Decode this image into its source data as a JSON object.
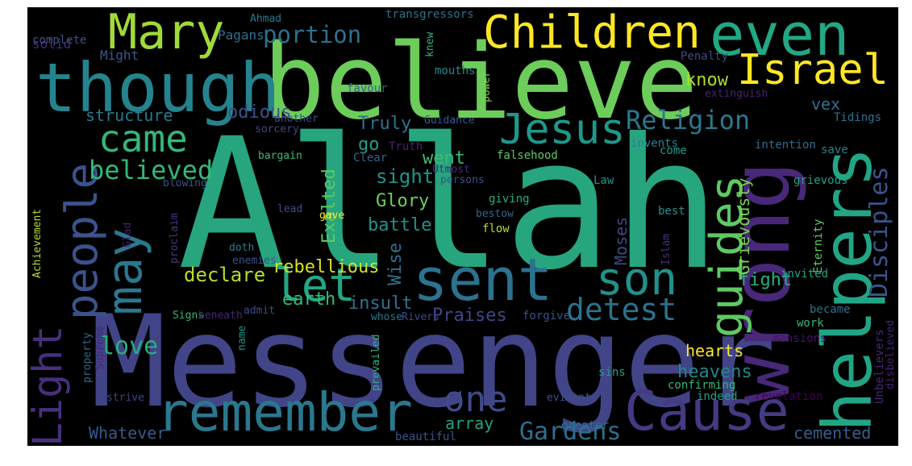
{
  "words": [
    {
      "text": "Allah",
      "color": "#26a57f"
    },
    {
      "text": "Messenger",
      "color": "#414487"
    },
    {
      "text": "believe",
      "color": "#6ccd5a"
    },
    {
      "text": "wrong",
      "color": "#482878"
    },
    {
      "text": "helpers",
      "color": "#21a585"
    },
    {
      "text": "though",
      "color": "#25838e"
    },
    {
      "text": "Children",
      "color": "#fde725"
    },
    {
      "text": "even",
      "color": "#22a884"
    },
    {
      "text": "Mary",
      "color": "#a0da39"
    },
    {
      "text": "Israel",
      "color": "#fde725"
    },
    {
      "text": "remember",
      "color": "#2a788e"
    },
    {
      "text": "Cause",
      "color": "#443a83"
    },
    {
      "text": "sent",
      "color": "#2c728e"
    },
    {
      "text": "Jesus",
      "color": "#1f988b"
    },
    {
      "text": "guides",
      "color": "#5ec962"
    },
    {
      "text": "may",
      "color": "#2a788e"
    },
    {
      "text": "people",
      "color": "#3b528b"
    },
    {
      "text": "Light",
      "color": "#472f7d"
    },
    {
      "text": "son",
      "color": "#21918c"
    },
    {
      "text": "let",
      "color": "#22a884"
    },
    {
      "text": "came",
      "color": "#35b779"
    },
    {
      "text": "one",
      "color": "#3e4a89"
    },
    {
      "text": "detest",
      "color": "#2c728e"
    },
    {
      "text": "Religion",
      "color": "#2a788e"
    },
    {
      "text": "portion",
      "color": "#2d708e"
    },
    {
      "text": "believed",
      "color": "#35b779"
    },
    {
      "text": "Disciples",
      "color": "#3b528b"
    },
    {
      "text": "Gardens",
      "color": "#2d708e"
    },
    {
      "text": "love",
      "color": "#28ae80"
    },
    {
      "text": "declare",
      "color": "#b5de2b"
    },
    {
      "text": "rebellious",
      "color": "#d8e219"
    },
    {
      "text": "structure",
      "color": "#2a788e"
    },
    {
      "text": "odious",
      "color": "#3b528b"
    },
    {
      "text": "Truly",
      "color": "#2c728e"
    },
    {
      "text": "went",
      "color": "#3dbc74"
    },
    {
      "text": "know",
      "color": "#addc30"
    },
    {
      "text": "sight",
      "color": "#1f968b"
    },
    {
      "text": "Glory",
      "color": "#6ece58"
    },
    {
      "text": "battle",
      "color": "#21918c"
    },
    {
      "text": "Exalted",
      "color": "#5ec962"
    },
    {
      "text": "Moses",
      "color": "#404688"
    },
    {
      "text": "fight",
      "color": "#27ad81"
    },
    {
      "text": "Grievously",
      "color": "#7ad151"
    },
    {
      "text": "insult",
      "color": "#2d708e"
    },
    {
      "text": "Praises",
      "color": "#404688"
    },
    {
      "text": "earth",
      "color": "#38b977"
    },
    {
      "text": "Wise",
      "color": "#2e6e8e"
    },
    {
      "text": "hearts",
      "color": "#fde725"
    },
    {
      "text": "heavens",
      "color": "#25848e"
    },
    {
      "text": "array",
      "color": "#20a386"
    },
    {
      "text": "Whatever",
      "color": "#38598c"
    },
    {
      "text": "cemented",
      "color": "#355f8d"
    },
    {
      "text": "vex",
      "color": "#2c728e"
    },
    {
      "text": "go",
      "color": "#1fa088"
    },
    {
      "text": "solid",
      "color": "#472c7a"
    },
    {
      "text": "complete",
      "color": "#3b528b"
    },
    {
      "text": "Might",
      "color": "#38598c"
    },
    {
      "text": "Pagans",
      "color": "#2d708e"
    },
    {
      "text": "Ahmad",
      "color": "#29798e"
    },
    {
      "text": "transgressors",
      "color": "#2d708e"
    },
    {
      "text": "knew",
      "color": "#2fb47c"
    },
    {
      "text": "Penalty",
      "color": "#3e4a89"
    },
    {
      "text": "extinguish",
      "color": "#482475"
    },
    {
      "text": "mouths",
      "color": "#23898e"
    },
    {
      "text": "power",
      "color": "#7ad151"
    },
    {
      "text": "favour",
      "color": "#33638d"
    },
    {
      "text": "another",
      "color": "#3e4989"
    },
    {
      "text": "Guidance",
      "color": "#365d8d"
    },
    {
      "text": "sorcery",
      "color": "#3f4788"
    },
    {
      "text": "Tidings",
      "color": "#2c728e"
    },
    {
      "text": "Truth",
      "color": "#482173"
    },
    {
      "text": "invents",
      "color": "#26828e"
    },
    {
      "text": "intention",
      "color": "#2f6c8e"
    },
    {
      "text": "come",
      "color": "#1f9a8a"
    },
    {
      "text": "save",
      "color": "#25848e"
    },
    {
      "text": "bargain",
      "color": "#3aba76"
    },
    {
      "text": "Clear",
      "color": "#33638d"
    },
    {
      "text": "falsehood",
      "color": "#5ec962"
    },
    {
      "text": "Utmost",
      "color": "#482878"
    },
    {
      "text": "persons",
      "color": "#3b528b"
    },
    {
      "text": "Law",
      "color": "#20938c"
    },
    {
      "text": "grievous",
      "color": "#20a386"
    },
    {
      "text": "Achievement",
      "color": "#b5de2b"
    },
    {
      "text": "blowing",
      "color": "#3b528b"
    },
    {
      "text": "lead",
      "color": "#3e4a89"
    },
    {
      "text": "giving",
      "color": "#26ad81"
    },
    {
      "text": "best",
      "color": "#21918c"
    },
    {
      "text": "proclaim",
      "color": "#443983"
    },
    {
      "text": "gave",
      "color": "#fde725"
    },
    {
      "text": "bestow",
      "color": "#31668e"
    },
    {
      "text": "Glad",
      "color": "#481f70"
    },
    {
      "text": "flow",
      "color": "#b5de2b"
    },
    {
      "text": "Islam",
      "color": "#46327e"
    },
    {
      "text": "Eternity",
      "color": "#5ec962"
    },
    {
      "text": "doth",
      "color": "#2a788e"
    },
    {
      "text": "enemies",
      "color": "#3b528b"
    },
    {
      "text": "invited",
      "color": "#20a386"
    },
    {
      "text": "admit",
      "color": "#3f4889"
    },
    {
      "text": "Signs",
      "color": "#31b57b"
    },
    {
      "text": "beneath",
      "color": "#482576"
    },
    {
      "text": "forgive",
      "color": "#3b528b"
    },
    {
      "text": "whose",
      "color": "#2a768e"
    },
    {
      "text": "Rivers",
      "color": "#3e4989"
    },
    {
      "text": "mansions",
      "color": "#471365"
    },
    {
      "text": "became",
      "color": "#2c728e"
    },
    {
      "text": "Unbelievers",
      "color": "#482878"
    },
    {
      "text": "disbelieved",
      "color": "#482475"
    },
    {
      "text": "work",
      "color": "#37b878"
    },
    {
      "text": "property",
      "color": "#31678e"
    },
    {
      "text": "Supreme",
      "color": "#482677"
    },
    {
      "text": "name",
      "color": "#1f968b"
    },
    {
      "text": "prevailed",
      "color": "#2db27d"
    },
    {
      "text": "sins",
      "color": "#1f9e89"
    },
    {
      "text": "strive",
      "color": "#414487"
    },
    {
      "text": "evident",
      "color": "#3b528b"
    },
    {
      "text": "confirming",
      "color": "#35b779"
    },
    {
      "text": "indeed",
      "color": "#1fa088"
    },
    {
      "text": "revelation",
      "color": "#440154"
    },
    {
      "text": "greater",
      "color": "#2d708e"
    },
    {
      "text": "beautiful",
      "color": "#3b528b"
    }
  ]
}
